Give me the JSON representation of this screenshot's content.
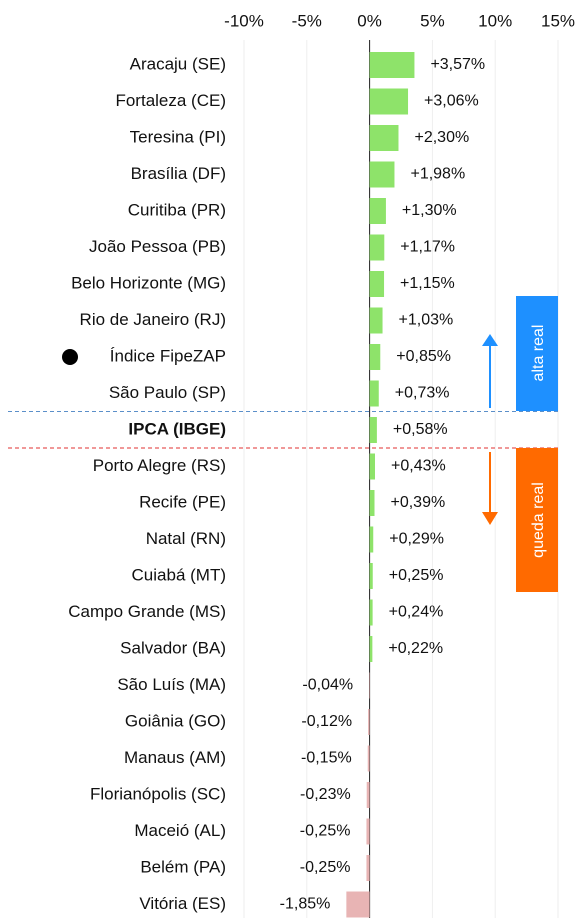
{
  "chart_data": {
    "type": "bar",
    "orientation": "horizontal",
    "categories": [
      "Aracaju (SE)",
      "Fortaleza (CE)",
      "Teresina (PI)",
      "Brasília (DF)",
      "Curitiba (PR)",
      "João Pessoa (PB)",
      "Belo Horizonte (MG)",
      "Rio de Janeiro (RJ)",
      "Índice FipeZAP",
      "São Paulo (SP)",
      "IPCA (IBGE)",
      "Porto Alegre (RS)",
      "Recife (PE)",
      "Natal (RN)",
      "Cuiabá (MT)",
      "Campo Grande (MS)",
      "Salvador (BA)",
      "São Luís (MA)",
      "Goiânia (GO)",
      "Manaus (AM)",
      "Florianópolis (SC)",
      "Maceió (AL)",
      "Belém (PA)",
      "Vitória (ES)"
    ],
    "values": [
      3.57,
      3.06,
      2.3,
      1.98,
      1.3,
      1.17,
      1.15,
      1.03,
      0.85,
      0.73,
      0.58,
      0.43,
      0.39,
      0.29,
      0.25,
      0.24,
      0.22,
      -0.04,
      -0.12,
      -0.15,
      -0.23,
      -0.25,
      -0.25,
      -1.85
    ],
    "value_labels": [
      "+3,57%",
      "+3,06%",
      "+2,30%",
      "+1,98%",
      "+1,30%",
      "+1,17%",
      "+1,15%",
      "+1,03%",
      "+0,85%",
      "+0,73%",
      "+0,58%",
      "+0,43%",
      "+0,39%",
      "+0,29%",
      "+0,25%",
      "+0,24%",
      "+0,22%",
      "-0,04%",
      "-0,12%",
      "-0,15%",
      "-0,23%",
      "-0,25%",
      "-0,25%",
      "-1,85%"
    ],
    "color": "#8ee36a",
    "negative_color": "#e8b4b4",
    "xlim": [
      -10,
      15
    ],
    "xticks": [
      {
        "value": -10,
        "label": "-10%"
      },
      {
        "value": -5,
        "label": "-5%"
      },
      {
        "value": 0,
        "label": "0%"
      },
      {
        "value": 5,
        "label": "5%"
      },
      {
        "value": 10,
        "label": "10%"
      },
      {
        "value": 15,
        "label": "15%"
      }
    ],
    "grid": true,
    "annotations": [
      "alta real",
      "queda real"
    ]
  }
}
